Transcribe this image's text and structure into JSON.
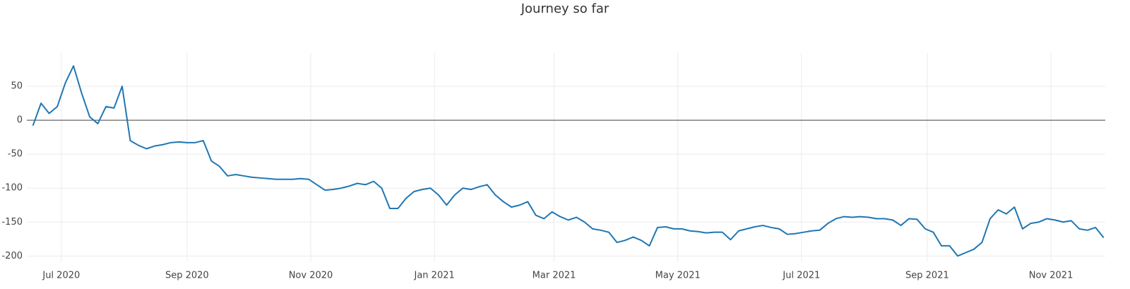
{
  "chart_data": {
    "type": "line",
    "title": "Journey so far",
    "series": [
      {
        "color": "#1f77b4",
        "values": [
          -8,
          25,
          10,
          20,
          55,
          80,
          40,
          5,
          -5,
          20,
          18,
          50,
          -30,
          -37,
          -42,
          -38,
          -36,
          -33,
          -32,
          -33,
          -33,
          -30,
          -60,
          -68,
          -82,
          -80,
          -82,
          -84,
          -85,
          -86,
          -87,
          -87,
          -87,
          -86,
          -87,
          -95,
          -103,
          -102,
          -100,
          -97,
          -93,
          -95,
          -90,
          -100,
          -130,
          -130,
          -115,
          -105,
          -102,
          -100,
          -110,
          -125,
          -110,
          -100,
          -102,
          -98,
          -95,
          -110,
          -120,
          -128,
          -125,
          -120,
          -140,
          -145,
          -135,
          -142,
          -147,
          -143,
          -150,
          -160,
          -162,
          -165,
          -180,
          -177,
          -172,
          -177,
          -185,
          -158,
          -157,
          -160,
          -160,
          -163,
          -164,
          -166,
          -165,
          -165,
          -176,
          -163,
          -160,
          -157,
          -155,
          -158,
          -160,
          -168,
          -167,
          -165,
          -163,
          -162,
          -152,
          -145,
          -142,
          -143,
          -142,
          -143,
          -145,
          -145,
          -147,
          -155,
          -145,
          -146,
          -160,
          -165,
          -185,
          -185,
          -200,
          -195,
          -190,
          -180,
          -145,
          -132,
          -138,
          -128,
          -160,
          -152,
          -150,
          -145,
          -147,
          -150,
          -148,
          -160,
          -162,
          -158,
          -173
        ]
      }
    ],
    "xlim": [
      -0.75,
      132.2
    ],
    "xticks": [
      {
        "value": 3.5,
        "label": "Jul 2020"
      },
      {
        "value": 19,
        "label": "Sep 2020"
      },
      {
        "value": 34.25,
        "label": "Nov 2020"
      },
      {
        "value": 49.5,
        "label": "Jan 2021"
      },
      {
        "value": 64.25,
        "label": "Mar 2021"
      },
      {
        "value": 79.5,
        "label": "May 2021"
      },
      {
        "value": 94.75,
        "label": "Jul 2021"
      },
      {
        "value": 110.25,
        "label": "Sep 2021"
      },
      {
        "value": 125.5,
        "label": "Nov 2021"
      }
    ],
    "ylim": [
      -208,
      99
    ],
    "yticks": [
      50,
      0,
      -50,
      -100,
      -150,
      -200
    ],
    "grid": true,
    "zeroline": true
  }
}
